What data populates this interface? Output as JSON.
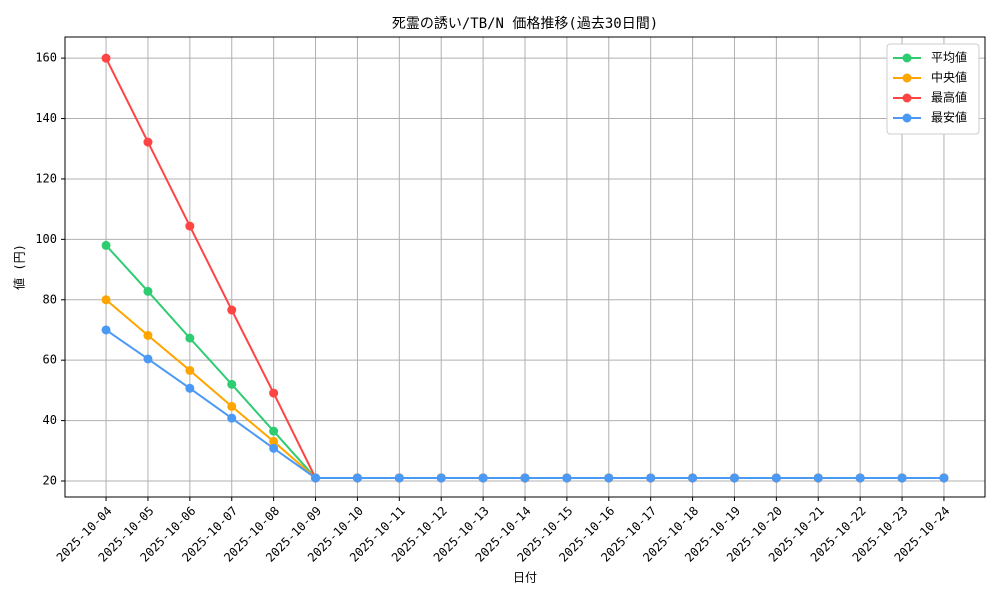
{
  "chart_data": {
    "type": "line",
    "title": "死霊の誘い/TB/N 価格推移(過去30日間)",
    "x_label": "日付",
    "y_label": "値 (円)",
    "categories": [
      "2025-10-04",
      "2025-10-05",
      "2025-10-06",
      "2025-10-07",
      "2025-10-08",
      "2025-10-09",
      "2025-10-10",
      "2025-10-11",
      "2025-10-12",
      "2025-10-13",
      "2025-10-14",
      "2025-10-15",
      "2025-10-16",
      "2025-10-17",
      "2025-10-18",
      "2025-10-19",
      "2025-10-20",
      "2025-10-21",
      "2025-10-22",
      "2025-10-23",
      "2025-10-24"
    ],
    "series": [
      {
        "name": "平均値",
        "color": "#2ecc71",
        "values": [
          98,
          82.8,
          67.3,
          52,
          36.5,
          21,
          21,
          21,
          21,
          21,
          21,
          21,
          21,
          21,
          21,
          21,
          21,
          21,
          21,
          21,
          21
        ]
      },
      {
        "name": "中央値",
        "color": "#ffa500",
        "values": [
          80,
          68.2,
          56.6,
          44.7,
          33.1,
          21,
          21,
          21,
          21,
          21,
          21,
          21,
          21,
          21,
          21,
          21,
          21,
          21,
          21,
          21,
          21
        ]
      },
      {
        "name": "最高値",
        "color": "#ff4444",
        "values": [
          160,
          132.2,
          104.4,
          76.6,
          49.1,
          21,
          21,
          21,
          21,
          21,
          21,
          21,
          21,
          21,
          21,
          21,
          21,
          21,
          21,
          21,
          21
        ]
      },
      {
        "name": "最安値",
        "color": "#4a9af5",
        "values": [
          70,
          60.4,
          50.7,
          40.8,
          30.8,
          21,
          21,
          21,
          21,
          21,
          21,
          21,
          21,
          21,
          21,
          21,
          21,
          21,
          21,
          21,
          21
        ]
      }
    ],
    "ylim": [
      14.7,
      167
    ],
    "yticks": [
      20,
      40,
      60,
      80,
      100,
      120,
      140,
      160
    ],
    "grid": true,
    "legend": "upper right"
  }
}
